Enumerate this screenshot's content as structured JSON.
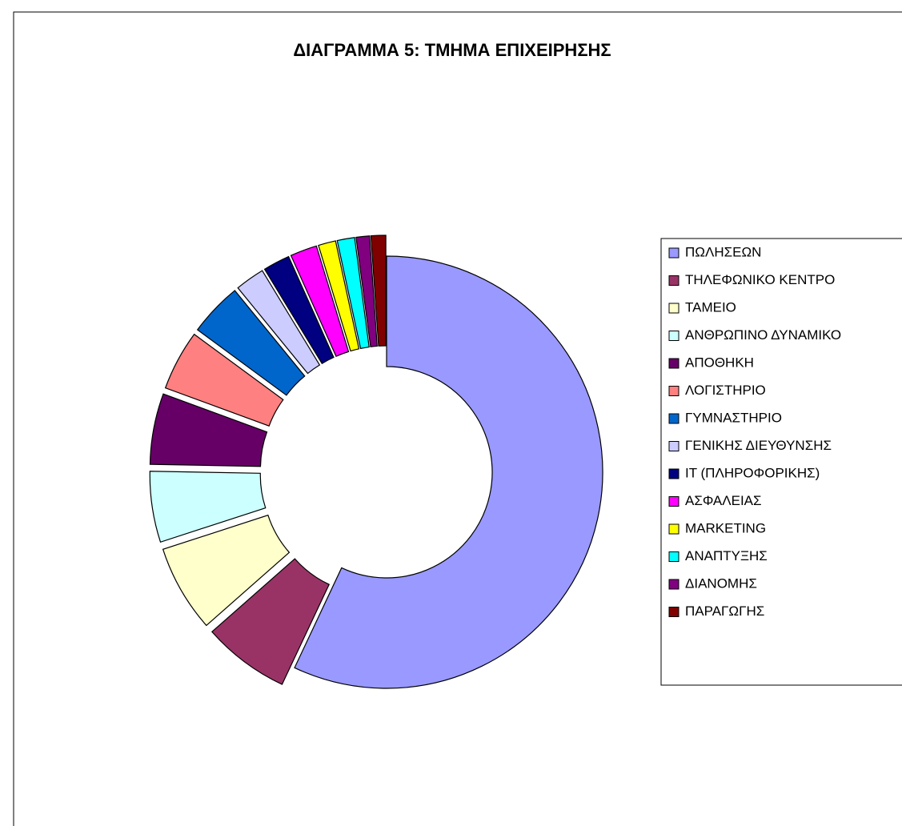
{
  "chart_data": {
    "type": "doughnut",
    "title": "ΔΙΑΓΡΑΜΜΑ 5: ΤΜΗΜΑ ΕΠΙΧΕΙΡΗΣΗΣ",
    "categories": [
      "ΠΩΛΗΣΕΩΝ",
      "ΤΗΛΕΦΩΝΙΚΟ ΚΕΝΤΡΟ",
      "ΤΑΜΕΙΟ",
      "ΑΝΘΡΩΠΙΝΟ ΔΥΝΑΜΙΚΟ",
      "ΑΠΟΘΗΚΗ",
      "ΛΟΓΙΣΤΗΡΙΟ",
      "ΓΥΜΝΑΣΤΗΡΙΟ",
      "ΓΕΝΙΚΗΣ ΔΙΕΥΘΥΝΣΗΣ",
      "IT (ΠΛΗΡΟΦΟΡΙΚΗΣ)",
      "ΑΣΦΑΛΕΙΑΣ",
      "MARKETING",
      "ΑΝΑΠΤΥΞΗΣ",
      "ΔΙΑΝΟΜΗΣ",
      "ΠΑΡΑΓΩΓΗΣ"
    ],
    "values": [
      57,
      6.5,
      6.5,
      5.3,
      5.3,
      4.5,
      4,
      2.2,
      2,
      2,
      1.3,
      1.3,
      1,
      1.1
    ],
    "colors": [
      "#9999FF",
      "#993366",
      "#FFFFCC",
      "#CCFFFF",
      "#660066",
      "#FF8080",
      "#0066CC",
      "#CCCCFF",
      "#000080",
      "#FF00FF",
      "#FFFF00",
      "#00FFFF",
      "#800080",
      "#800000"
    ],
    "legend": "right"
  }
}
